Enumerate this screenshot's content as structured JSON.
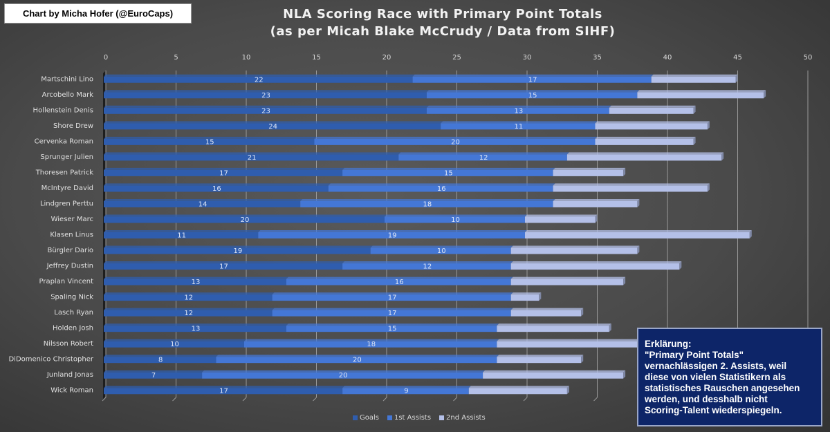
{
  "credit": "Chart by Micha Hofer (@EuroCaps)",
  "note": {
    "lines": [
      "Erklärung:",
      "\"Primary Point Totals\"",
      "vernachlässigen 2. Assists, weil",
      "diese von vielen Statistikern als",
      "statistisches Rauschen angesehen",
      "werden, und desshalb nicht",
      "Scoring-Talent wiederspiegeln."
    ]
  },
  "colors": {
    "goals": "#2f5dae",
    "first_assists": "#4477d6",
    "second_assists": "#b4c0e8"
  },
  "chart_data": {
    "type": "bar",
    "orientation": "horizontal",
    "stacked": true,
    "title": "NLA Scoring Race with Primary Point Totals",
    "subtitle": "(as per Micah Blake McCrudy / Data from SIHF)",
    "xlabel": "",
    "ylabel": "",
    "xlim": [
      0,
      50
    ],
    "xticks": [
      0,
      5,
      10,
      15,
      20,
      25,
      30,
      35,
      40,
      45,
      50
    ],
    "x_axis_position": "top",
    "grid": true,
    "legend": "bottom",
    "categories": [
      "Martschini Lino",
      "Arcobello Mark",
      "Hollenstein Denis",
      "Shore Drew",
      "Cervenka Roman",
      "Sprunger Julien",
      "Thoresen Patrick",
      "McIntyre David",
      "Lindgren Perttu",
      "Wieser Marc",
      "Klasen Linus",
      "Bürgler Dario",
      "Jeffrey Dustin",
      "Praplan Vincent",
      "Spaling Nick",
      "Lasch Ryan",
      "Holden Josh",
      "Nilsson Robert",
      "DiDomenico Christopher",
      "Junland Jonas",
      "Wick Roman"
    ],
    "series": [
      {
        "name": "Goals",
        "labeled": true,
        "values": [
          22,
          23,
          23,
          24,
          15,
          21,
          17,
          16,
          14,
          20,
          11,
          19,
          17,
          13,
          12,
          12,
          13,
          10,
          8,
          7,
          17
        ]
      },
      {
        "name": "1st Assists",
        "labeled": true,
        "values": [
          17,
          15,
          13,
          11,
          20,
          12,
          15,
          16,
          18,
          10,
          19,
          10,
          12,
          16,
          17,
          17,
          15,
          18,
          20,
          20,
          9
        ]
      },
      {
        "name": "2nd Assists",
        "labeled": false,
        "values": [
          6,
          9,
          6,
          8,
          7,
          11,
          5,
          11,
          6,
          5,
          16,
          9,
          12,
          8,
          2,
          5,
          8,
          11,
          6,
          10,
          7
        ]
      }
    ]
  }
}
